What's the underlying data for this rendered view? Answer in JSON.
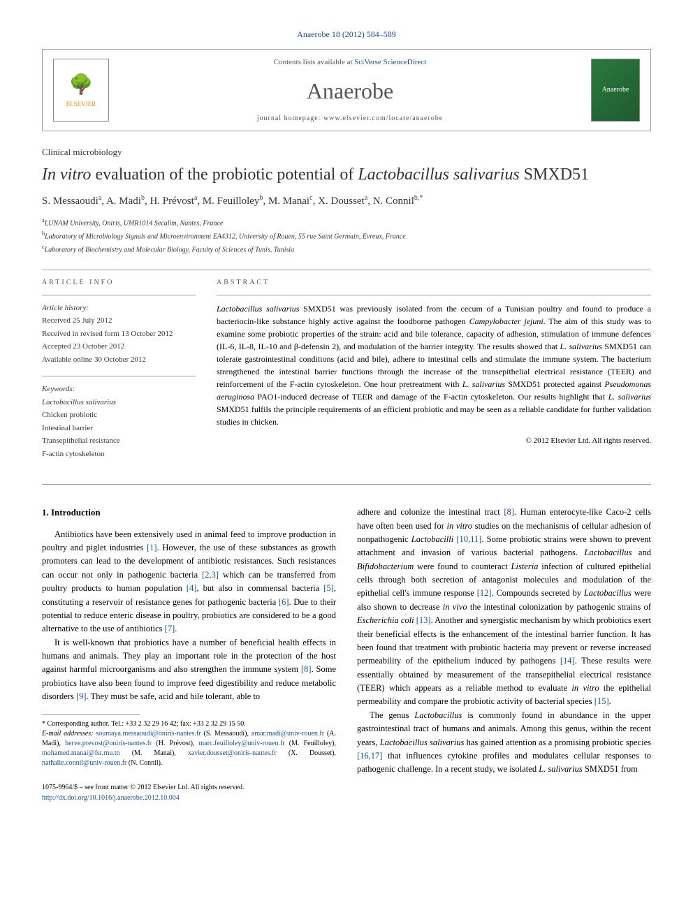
{
  "journal_ref": "Anaerobe 18 (2012) 584–589",
  "header": {
    "contents_prefix": "Contents lists available at ",
    "contents_link": "SciVerse ScienceDirect",
    "journal_name": "Anaerobe",
    "homepage_prefix": "journal homepage: ",
    "homepage_url": "www.elsevier.com/locate/anaerobe",
    "publisher": "ELSEVIER",
    "cover_label": "Anaerobe"
  },
  "section_label": "Clinical microbiology",
  "title_parts": {
    "p1": "In vitro",
    "p2": " evaluation of the probiotic potential of ",
    "p3": "Lactobacillus salivarius",
    "p4": " SMXD51"
  },
  "authors": {
    "a1": "S. Messaoudi",
    "s1": "a",
    "a2": ", A. Madi",
    "s2": "b",
    "a3": ", H. Prévost",
    "s3": "a",
    "a4": ", M. Feuilloley",
    "s4": "b",
    "a5": ", M. Manai",
    "s5": "c",
    "a6": ", X. Dousset",
    "s6": "a",
    "a7": ", N. Connil",
    "s7": "b,*"
  },
  "affiliations": {
    "a": "LUNAM University, Oniris, UMR1014 Secalim, Nantes, France",
    "b": "Laboratory of Microbiology Signals and Microenvironment EA4312, University of Rouen, 55 rue Saint Germain, Evreux, France",
    "c": "Laboratory of Biochemistry and Molecular Biology, Faculty of Sciences of Tunis, Tunisia"
  },
  "article_info": {
    "heading": "ARTICLE INFO",
    "history_label": "Article history:",
    "received": "Received 25 July 2012",
    "revised": "Received in revised form 13 October 2012",
    "accepted": "Accepted 23 October 2012",
    "online": "Available online 30 October 2012",
    "keywords_label": "Keywords:",
    "kw1": "Lactobacillus salivarius",
    "kw2": "Chicken probiotic",
    "kw3": "Intestinal barrier",
    "kw4": "Transepithelial resistance",
    "kw5": "F-actin cytoskeleton"
  },
  "abstract": {
    "heading": "ABSTRACT",
    "text_prefix": "Lactobacillus salivarius",
    "text_body": " SMXD51 was previously isolated from the cecum of a Tunisian poultry and found to produce a bacteriocin-like substance highly active against the foodborne pathogen ",
    "cj": "Campylobacter jejuni",
    "text_body2": ". The aim of this study was to examine some probiotic properties of the strain: acid and bile tolerance, capacity of adhesion, stimulation of immune defences (IL-6, IL-8, IL-10 and β-defensin 2), and modulation of the barrier integrity. The results showed that ",
    "ls1": "L. salivarius",
    "text_body3": " SMXD51 can tolerate gastrointestinal conditions (acid and bile), adhere to intestinal cells and stimulate the immune system. The bacterium strengthened the intestinal barrier functions through the increase of the transepithelial electrical resistance (TEER) and reinforcement of the F-actin cytoskeleton. One hour pretreatment with ",
    "ls2": "L. salivarius",
    "text_body4": " SMXD51 protected against ",
    "pa": "Pseudomonas aeruginosa",
    "text_body5": " PAO1-induced decrease of TEER and damage of the F-actin cytoskeleton. Our results highlight that ",
    "ls3": "L. salivarius",
    "text_body6": " SMXD51 fulfils the principle requirements of an efficient probiotic and may be seen as a reliable candidate for further validation studies in chicken.",
    "copyright": "© 2012 Elsevier Ltd. All rights reserved."
  },
  "intro": {
    "heading": "1. Introduction",
    "p1a": "Antibiotics have been extensively used in animal feed to improve production in poultry and piglet industries ",
    "r1": "[1]",
    "p1b": ". However, the use of these substances as growth promoters can lead to the development of antibiotic resistances. Such resistances can occur not only in pathogenic bacteria ",
    "r23": "[2,3]",
    "p1c": " which can be transferred from poultry products to human population ",
    "r4": "[4]",
    "p1d": ", but also in commensal bacteria ",
    "r5": "[5]",
    "p1e": ", constituting a reservoir of resistance genes for pathogenic bacteria ",
    "r6": "[6]",
    "p1f": ". Due to their potential to reduce enteric disease in poultry, probiotics are considered to be a good alternative to the use of antibiotics ",
    "r7": "[7]",
    "p1g": ".",
    "p2a": "It is well-known that probiotics have a number of beneficial health effects in humans and animals. They play an important role in the protection of the host against harmful microorganisms and also strengthen the immune system ",
    "r8": "[8]",
    "p2b": ". Some probiotics have also been found to improve feed digestibility and reduce metabolic disorders ",
    "r9": "[9]",
    "p2c": ". They must be safe, acid and bile tolerant, able to"
  },
  "col2": {
    "p1a": "adhere and colonize the intestinal tract ",
    "r8": "[8]",
    "p1b": ". Human enterocyte-like Caco-2 cells have often been used for ",
    "iv": "in vitro",
    "p1c": " studies on the mechanisms of cellular adhesion of nonpathogenic ",
    "lb": "Lactobacilli",
    "sp": " ",
    "r1011": "[10,11]",
    "p1d": ". Some probiotic strains were shown to prevent attachment and invasion of various bacterial pathogens. ",
    "lac": "Lactobacillus",
    "p1e": " and ",
    "bif": "Bifidobacterium",
    "p1f": " were found to counteract ",
    "lis": "Listeria",
    "p1g": " infection of cultured epithelial cells through both secretion of antagonist molecules and modulation of the epithelial cell's immune response ",
    "r12": "[12]",
    "p1h": ". Compounds secreted by ",
    "lac2": "Lactobacillus",
    "p1i": " were also shown to decrease ",
    "ivv": "in vivo",
    "p1j": " the intestinal colonization by pathogenic strains of ",
    "ec": "Escherichia coli",
    "sp2": " ",
    "r13": "[13]",
    "p1k": ". Another and synergistic mechanism by which probiotics exert their beneficial effects is the enhancement of the intestinal barrier function. It has been found that treatment with probiotic bacteria may prevent or reverse increased permeability of the epithelium induced by pathogens ",
    "r14": "[14]",
    "p1l": ". These results were essentially obtained by measurement of the transepithelial electrical resistance (TEER) which appears as a reliable method to evaluate ",
    "iv2": "in vitro",
    "p1m": " the epithelial permeability and compare the probiotic activity of bacterial species ",
    "r15": "[15]",
    "p1n": ".",
    "p2a": "The genus ",
    "lac3": "Lactobacillus",
    "p2b": " is commonly found in abundance in the upper gastrointestinal tract of humans and animals. Among this genus, within the recent years, ",
    "ls": "Lactobacillus salivarius",
    "p2c": " has gained attention as a promising probiotic species ",
    "r1617": "[16,17]",
    "p2d": " that influences cytokine profiles and modulates cellular responses to pathogenic challenge. In a recent study, we isolated ",
    "ls2": "L. salivarius",
    "p2e": " SMXD51 from"
  },
  "footer": {
    "corr": "* Corresponding author. Tel.: +33 2 32 29 16 42; fax: +33 2 32 29 15 50.",
    "email_label": "E-mail addresses:",
    "e1": "soumaya.messaoudi@oniris-nantes.fr",
    "n1": " (S. Messaoudi), ",
    "e2": "amar.madi@univ-rouen.fr",
    "n2": " (A. Madi), ",
    "e3": "herve.prevost@oniris-nantes.fr",
    "n3": " (H. Prévost), ",
    "e4": "marc.feuilloley@univ-rouen.fr",
    "n4": " (M. Feuilloley), ",
    "e5": "mohamed.manai@fst.rnu.tn",
    "n5": " (M. Manai), ",
    "e6": "xavier.dousset@oniris-nantes.fr",
    "n6": " (X. Dousset), ",
    "e7": "nathalie.connil@univ-rouen.fr",
    "n7": " (N. Connil)."
  },
  "bottom": {
    "issn": "1075-9964/$ – see front matter © 2012 Elsevier Ltd. All rights reserved.",
    "doi": "http://dx.doi.org/10.1016/j.anaerobe.2012.10.004"
  },
  "colors": {
    "link": "#1a4d8f",
    "text": "#000000",
    "gray": "#555555"
  }
}
